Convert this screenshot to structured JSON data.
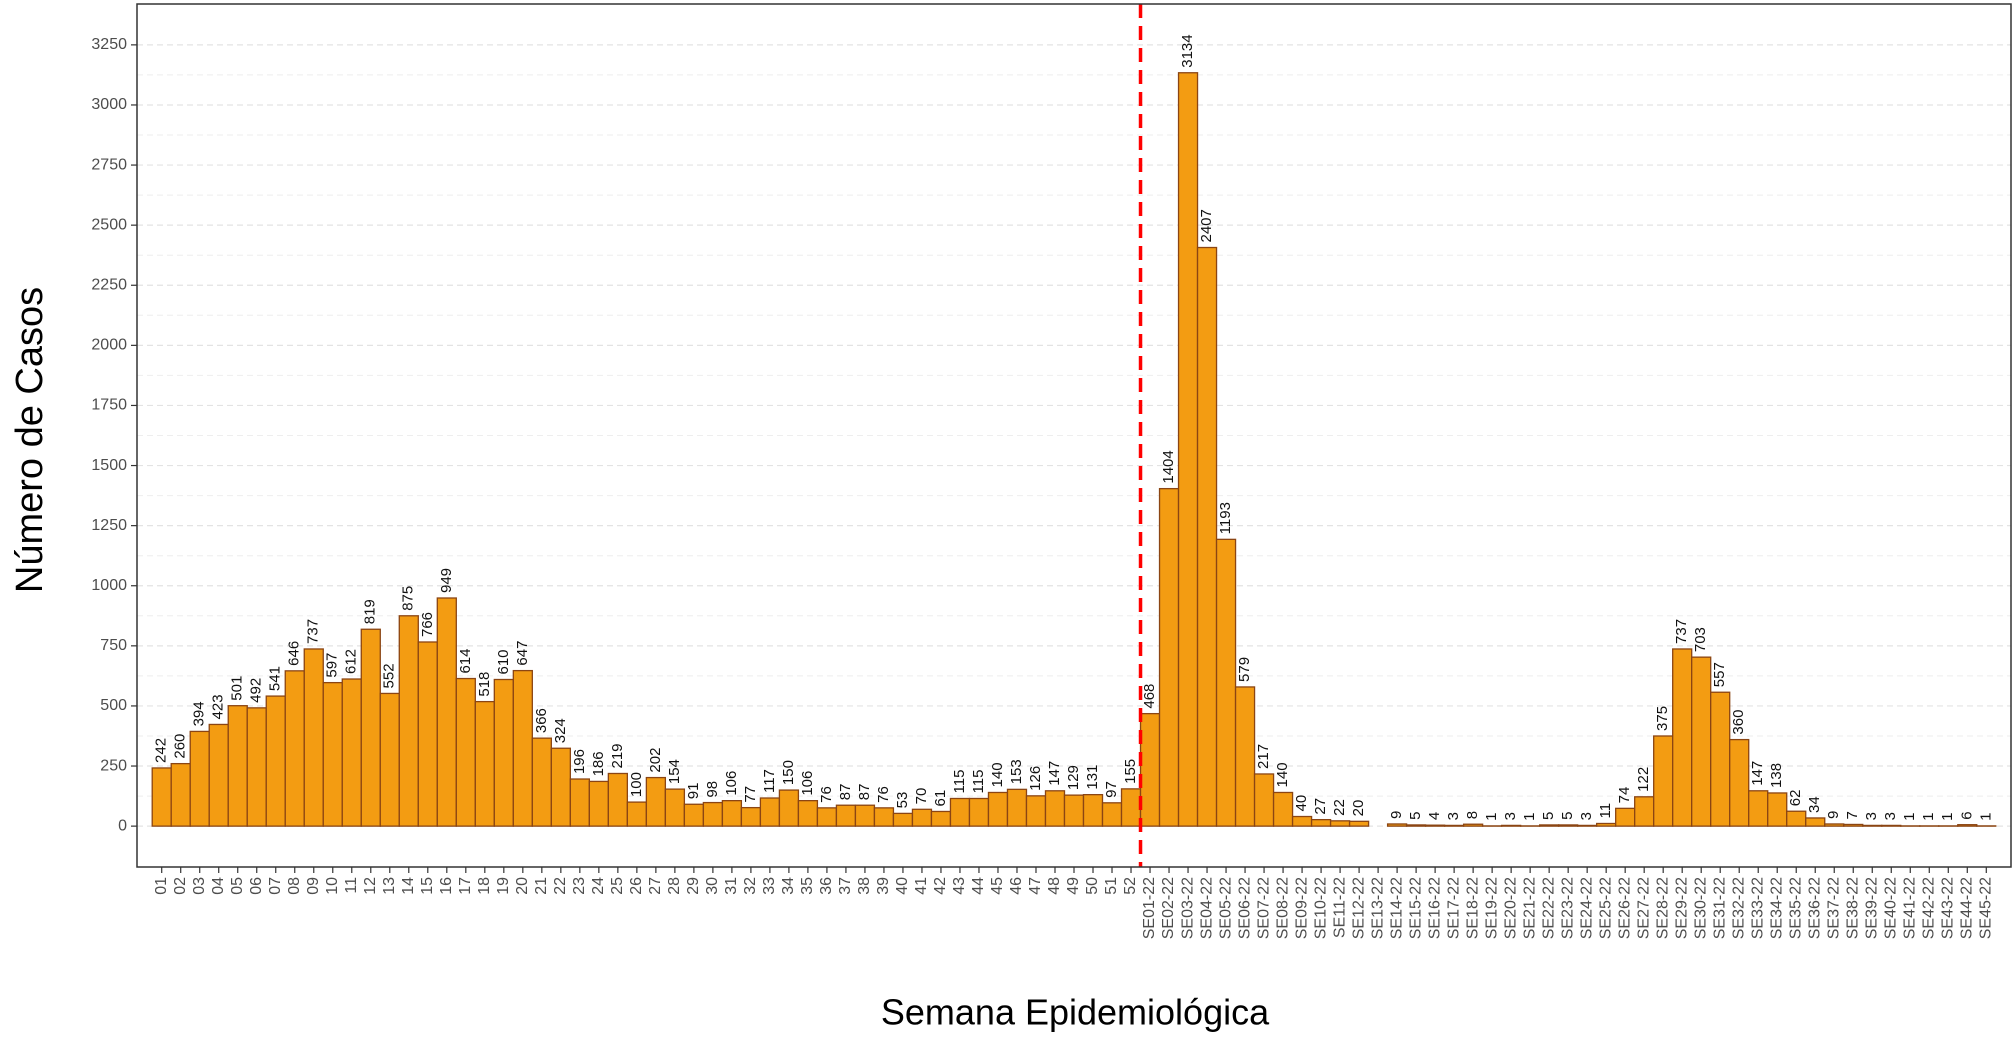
{
  "chart_data": {
    "type": "bar",
    "x_label": "Semana Epidemiológica",
    "y_label": "Número de Casos",
    "categories": [
      "01",
      "02",
      "03",
      "04",
      "05",
      "06",
      "07",
      "08",
      "09",
      "10",
      "11",
      "12",
      "13",
      "14",
      "15",
      "16",
      "17",
      "18",
      "19",
      "20",
      "21",
      "22",
      "23",
      "24",
      "25",
      "26",
      "27",
      "28",
      "29",
      "30",
      "31",
      "32",
      "33",
      "34",
      "35",
      "36",
      "37",
      "38",
      "39",
      "40",
      "41",
      "42",
      "43",
      "44",
      "45",
      "46",
      "47",
      "48",
      "49",
      "50",
      "51",
      "52",
      "SE01-22",
      "SE02-22",
      "SE03-22",
      "SE04-22",
      "SE05-22",
      "SE06-22",
      "SE07-22",
      "SE08-22",
      "SE09-22",
      "SE10-22",
      "SE11-22",
      "SE12-22",
      "SE13-22",
      "SE14-22",
      "SE15-22",
      "SE16-22",
      "SE17-22",
      "SE18-22",
      "SE19-22",
      "SE20-22",
      "SE21-22",
      "SE22-22",
      "SE23-22",
      "SE24-22",
      "SE25-22",
      "SE26-22",
      "SE27-22",
      "SE28-22",
      "SE29-22",
      "SE30-22",
      "SE31-22",
      "SE32-22",
      "SE33-22",
      "SE34-22",
      "SE35-22",
      "SE36-22",
      "SE37-22",
      "SE38-22",
      "SE39-22",
      "SE40-22",
      "SE41-22",
      "SE42-22",
      "SE43-22",
      "SE44-22",
      "SE45-22"
    ],
    "values": [
      242,
      260,
      394,
      423,
      501,
      492,
      541,
      646,
      737,
      597,
      612,
      819,
      552,
      875,
      766,
      949,
      614,
      518,
      610,
      647,
      366,
      324,
      196,
      186,
      219,
      100,
      202,
      154,
      91,
      98,
      106,
      77,
      117,
      150,
      106,
      76,
      87,
      87,
      76,
      53,
      70,
      61,
      115,
      115,
      140,
      153,
      126,
      147,
      129,
      131,
      97,
      155,
      468,
      1404,
      3134,
      2407,
      1193,
      579,
      217,
      140,
      40,
      27,
      22,
      20,
      null,
      9,
      5,
      4,
      3,
      8,
      1,
      3,
      1,
      5,
      5,
      3,
      11,
      74,
      122,
      375,
      737,
      703,
      557,
      360,
      147,
      138,
      62,
      34,
      9,
      7,
      3,
      3,
      1,
      1,
      1,
      6,
      1
    ],
    "color": "#f39c12",
    "edge_color": "#8b4513",
    "ylim": [
      -170,
      3420
    ],
    "yticks": [
      0,
      250,
      500,
      750,
      1000,
      1250,
      1500,
      1750,
      2000,
      2250,
      2500,
      2750,
      3000,
      3250
    ],
    "grid": true,
    "reference_line": {
      "x": "52",
      "side": "right",
      "color": "#ff0000",
      "style": "dashed"
    }
  }
}
